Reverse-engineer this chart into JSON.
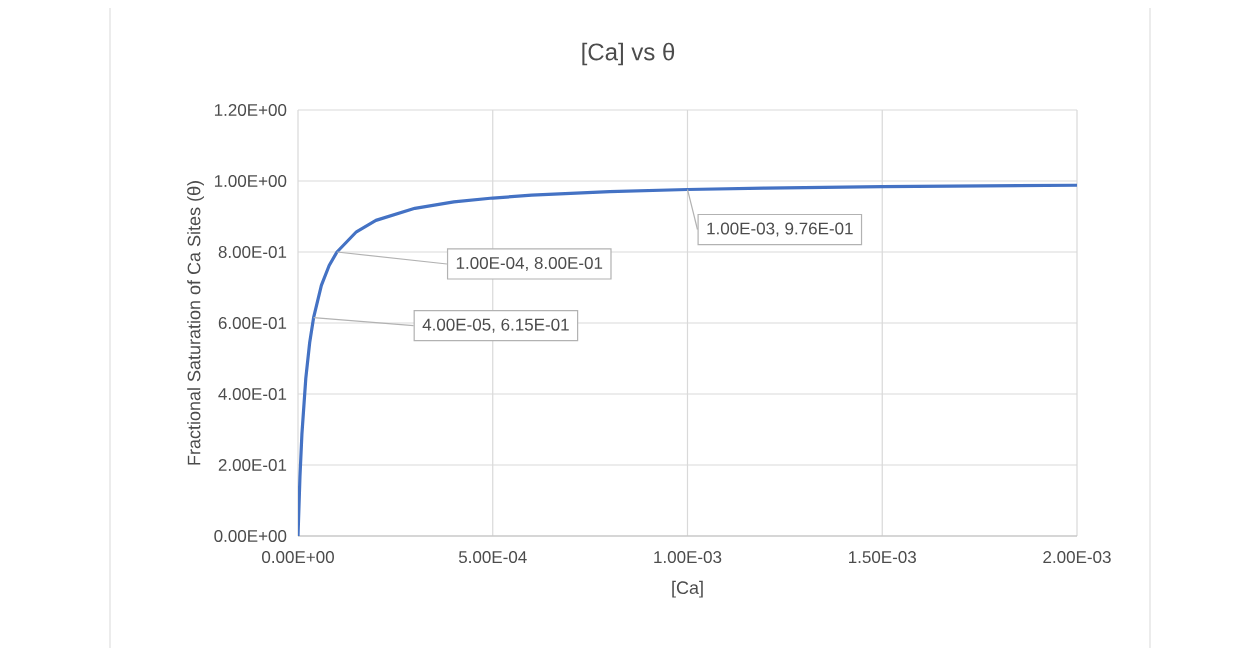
{
  "chart_data": {
    "type": "line",
    "title": "[Ca] vs θ",
    "xlabel": "[Ca]",
    "ylabel": "Fractional Saturation of Ca Sites (θ)",
    "x": [
      0,
      5e-06,
      1e-05,
      2e-05,
      3e-05,
      4e-05,
      6e-05,
      8e-05,
      0.0001,
      0.00015,
      0.0002,
      0.0003,
      0.0004,
      0.0005,
      0.0006,
      0.0008,
      0.001,
      0.0012,
      0.0015,
      0.002
    ],
    "series": [
      {
        "color": "#4472c4",
        "values": [
          0,
          0.167,
          0.286,
          0.444,
          0.545,
          0.615,
          0.706,
          0.762,
          0.8,
          0.857,
          0.889,
          0.923,
          0.941,
          0.952,
          0.96,
          0.97,
          0.976,
          0.98,
          0.984,
          0.988
        ]
      }
    ],
    "xlim": [
      0,
      0.002
    ],
    "ylim": [
      0,
      1.2
    ],
    "xticks": [
      {
        "value": 0,
        "label": "0.00E+00"
      },
      {
        "value": 0.0005,
        "label": "5.00E-04"
      },
      {
        "value": 0.001,
        "label": "1.00E-03"
      },
      {
        "value": 0.0015,
        "label": "1.50E-03"
      },
      {
        "value": 0.002,
        "label": "2.00E-03"
      }
    ],
    "yticks": [
      {
        "value": 0,
        "label": "0.00E+00"
      },
      {
        "value": 0.2,
        "label": "2.00E-01"
      },
      {
        "value": 0.4,
        "label": "4.00E-01"
      },
      {
        "value": 0.6,
        "label": "6.00E-01"
      },
      {
        "value": 0.8,
        "label": "8.00E-01"
      },
      {
        "value": 1,
        "label": "1.00E+00"
      },
      {
        "value": 1.2,
        "label": "1.20E+00"
      }
    ],
    "grid": true,
    "marker": "none",
    "line_style": "solid",
    "annotations": [
      {
        "text": "4.00E-05, 6.15E-01",
        "x": 4e-05,
        "y": 0.615
      },
      {
        "text": "1.00E-04, 8.00E-01",
        "x": 0.0001,
        "y": 0.8
      },
      {
        "text": "1.00E-03, 9.76E-01",
        "x": 0.001,
        "y": 0.976
      }
    ]
  }
}
